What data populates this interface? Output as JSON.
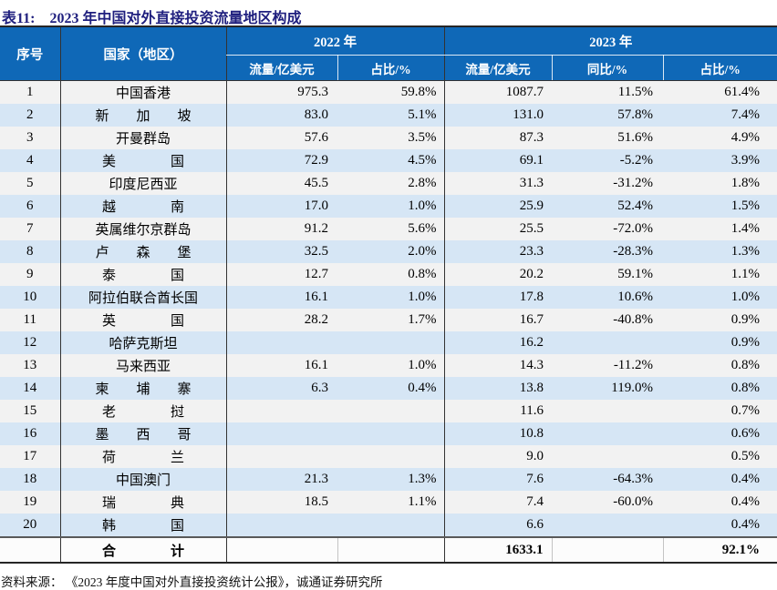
{
  "title": {
    "label": "表11:",
    "text": "2023 年中国对外直接投资流量地区构成"
  },
  "colors": {
    "header_bg": "#0f68b7",
    "stripe_gray": "#f2f2f2",
    "stripe_blue": "#d6e6f5",
    "title_color": "#1f1f7e",
    "dark_line": "#262626"
  },
  "table": {
    "headers": {
      "index": "序号",
      "country": "国家（地区）",
      "y2022": "2022 年",
      "y2023": "2023 年",
      "flow": "流量/亿美元",
      "share": "占比/%",
      "yoy": "同比/%"
    },
    "rows": [
      {
        "no": "1",
        "country": "中国香港",
        "f22": "975.3",
        "s22": "59.8%",
        "f23": "1087.7",
        "yoy": "11.5%",
        "s23": "61.4%"
      },
      {
        "no": "2",
        "country": "新　　加　　坡",
        "f22": "83.0",
        "s22": "5.1%",
        "f23": "131.0",
        "yoy": "57.8%",
        "s23": "7.4%"
      },
      {
        "no": "3",
        "country": "开曼群岛",
        "f22": "57.6",
        "s22": "3.5%",
        "f23": "87.3",
        "yoy": "51.6%",
        "s23": "4.9%"
      },
      {
        "no": "4",
        "country": "美　　　　国",
        "f22": "72.9",
        "s22": "4.5%",
        "f23": "69.1",
        "yoy": "-5.2%",
        "s23": "3.9%"
      },
      {
        "no": "5",
        "country": "印度尼西亚",
        "f22": "45.5",
        "s22": "2.8%",
        "f23": "31.3",
        "yoy": "-31.2%",
        "s23": "1.8%"
      },
      {
        "no": "6",
        "country": "越　　　　南",
        "f22": "17.0",
        "s22": "1.0%",
        "f23": "25.9",
        "yoy": "52.4%",
        "s23": "1.5%"
      },
      {
        "no": "7",
        "country": "英属维尔京群岛",
        "f22": "91.2",
        "s22": "5.6%",
        "f23": "25.5",
        "yoy": "-72.0%",
        "s23": "1.4%"
      },
      {
        "no": "8",
        "country": "卢　　森　　堡",
        "f22": "32.5",
        "s22": "2.0%",
        "f23": "23.3",
        "yoy": "-28.3%",
        "s23": "1.3%"
      },
      {
        "no": "9",
        "country": "泰　　　　国",
        "f22": "12.7",
        "s22": "0.8%",
        "f23": "20.2",
        "yoy": "59.1%",
        "s23": "1.1%"
      },
      {
        "no": "10",
        "country": "阿拉伯联合酋长国",
        "f22": "16.1",
        "s22": "1.0%",
        "f23": "17.8",
        "yoy": "10.6%",
        "s23": "1.0%"
      },
      {
        "no": "11",
        "country": "英　　　　国",
        "f22": "28.2",
        "s22": "1.7%",
        "f23": "16.7",
        "yoy": "-40.8%",
        "s23": "0.9%"
      },
      {
        "no": "12",
        "country": "哈萨克斯坦",
        "f22": "",
        "s22": "",
        "f23": "16.2",
        "yoy": "",
        "s23": "0.9%"
      },
      {
        "no": "13",
        "country": "马来西亚",
        "f22": "16.1",
        "s22": "1.0%",
        "f23": "14.3",
        "yoy": "-11.2%",
        "s23": "0.8%"
      },
      {
        "no": "14",
        "country": "柬　　埔　　寨",
        "f22": "6.3",
        "s22": "0.4%",
        "f23": "13.8",
        "yoy": "119.0%",
        "s23": "0.8%"
      },
      {
        "no": "15",
        "country": "老　　　　挝",
        "f22": "",
        "s22": "",
        "f23": "11.6",
        "yoy": "",
        "s23": "0.7%"
      },
      {
        "no": "16",
        "country": "墨　　西　　哥",
        "f22": "",
        "s22": "",
        "f23": "10.8",
        "yoy": "",
        "s23": "0.6%"
      },
      {
        "no": "17",
        "country": "荷　　　　兰",
        "f22": "",
        "s22": "",
        "f23": "9.0",
        "yoy": "",
        "s23": "0.5%"
      },
      {
        "no": "18",
        "country": "中国澳门",
        "f22": "21.3",
        "s22": "1.3%",
        "f23": "7.6",
        "yoy": "-64.3%",
        "s23": "0.4%"
      },
      {
        "no": "19",
        "country": "瑞　　　　典",
        "f22": "18.5",
        "s22": "1.1%",
        "f23": "7.4",
        "yoy": "-60.0%",
        "s23": "0.4%"
      },
      {
        "no": "20",
        "country": "韩　　　　国",
        "f22": "",
        "s22": "",
        "f23": "6.6",
        "yoy": "",
        "s23": "0.4%"
      }
    ],
    "total": {
      "label": "合　　　　计",
      "f22": "",
      "s22": "",
      "f23": "1633.1",
      "yoy": "",
      "s23": "92.1%"
    }
  },
  "source": "资料来源： 《2023 年度中国对外直接投资统计公报》，诚通证券研究所"
}
